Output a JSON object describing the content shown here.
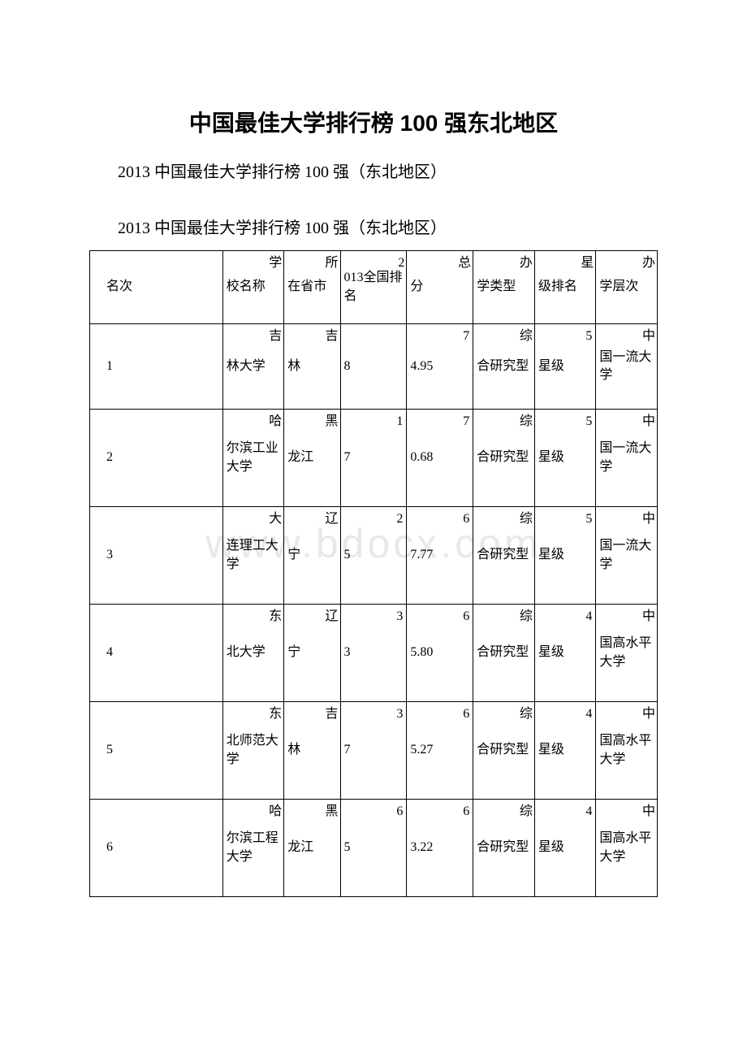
{
  "title": "中国最佳大学排行榜 100 强东北地区",
  "subtitle1": "2013 中国最佳大学排行榜 100 强（东北地区）",
  "subtitle2": "2013 中国最佳大学排行榜 100 强（东北地区）",
  "watermark": "www.bdocx.com",
  "headers": {
    "rank": "名次",
    "school": {
      "first": "学",
      "rest": "校名称"
    },
    "province": {
      "first": "所",
      "rest": "在省市"
    },
    "national": {
      "first": "2",
      "rest": "013全国排名"
    },
    "score": {
      "first": "总",
      "rest": "分"
    },
    "type": {
      "first": "办",
      "rest": "学类型"
    },
    "star": {
      "first": "星",
      "rest": "级排名"
    },
    "level": {
      "first": "办",
      "rest": "学层次"
    }
  },
  "rows": [
    {
      "rank": "1",
      "school": {
        "first": "吉",
        "rest": "林大学"
      },
      "province": {
        "first": "吉",
        "rest": "林"
      },
      "national": {
        "first": "",
        "rest": "8"
      },
      "score": {
        "first": "7",
        "rest": "4.95"
      },
      "type": {
        "first": "综",
        "rest": "合研究型"
      },
      "star": {
        "first": "5",
        "rest": "星级"
      },
      "level": {
        "first": "中",
        "rest": "国一流大学"
      }
    },
    {
      "rank": "2",
      "school": {
        "first": "哈",
        "rest": "尔滨工业大学"
      },
      "province": {
        "first": "黑",
        "rest": "龙江"
      },
      "national": {
        "first": "1",
        "rest": "7"
      },
      "score": {
        "first": "7",
        "rest": "0.68"
      },
      "type": {
        "first": "综",
        "rest": "合研究型"
      },
      "star": {
        "first": "5",
        "rest": "星级"
      },
      "level": {
        "first": "中",
        "rest": "国一流大学"
      }
    },
    {
      "rank": "3",
      "school": {
        "first": "大",
        "rest": "连理工大学"
      },
      "province": {
        "first": "辽",
        "rest": "宁"
      },
      "national": {
        "first": "2",
        "rest": "5"
      },
      "score": {
        "first": "6",
        "rest": "7.77"
      },
      "type": {
        "first": "综",
        "rest": "合研究型"
      },
      "star": {
        "first": "5",
        "rest": "星级"
      },
      "level": {
        "first": "中",
        "rest": "国一流大学"
      }
    },
    {
      "rank": "4",
      "school": {
        "first": "东",
        "rest": "北大学"
      },
      "province": {
        "first": "辽",
        "rest": "宁"
      },
      "national": {
        "first": "3",
        "rest": "3"
      },
      "score": {
        "first": "6",
        "rest": "5.80"
      },
      "type": {
        "first": "综",
        "rest": "合研究型"
      },
      "star": {
        "first": "4",
        "rest": "星级"
      },
      "level": {
        "first": "中",
        "rest": "国高水平大学"
      }
    },
    {
      "rank": "5",
      "school": {
        "first": "东",
        "rest": "北师范大学"
      },
      "province": {
        "first": "吉",
        "rest": "林"
      },
      "national": {
        "first": "3",
        "rest": "7"
      },
      "score": {
        "first": "6",
        "rest": "5.27"
      },
      "type": {
        "first": "综",
        "rest": "合研究型"
      },
      "star": {
        "first": "4",
        "rest": "星级"
      },
      "level": {
        "first": "中",
        "rest": "国高水平大学"
      }
    },
    {
      "rank": "6",
      "school": {
        "first": "哈",
        "rest": "尔滨工程大学"
      },
      "province": {
        "first": "黑",
        "rest": "龙江"
      },
      "national": {
        "first": "6",
        "rest": "5"
      },
      "score": {
        "first": "6",
        "rest": "3.22"
      },
      "type": {
        "first": "综",
        "rest": "合研究型"
      },
      "star": {
        "first": "4",
        "rest": "星级"
      },
      "level": {
        "first": "中",
        "rest": "国高水平大学"
      }
    }
  ]
}
